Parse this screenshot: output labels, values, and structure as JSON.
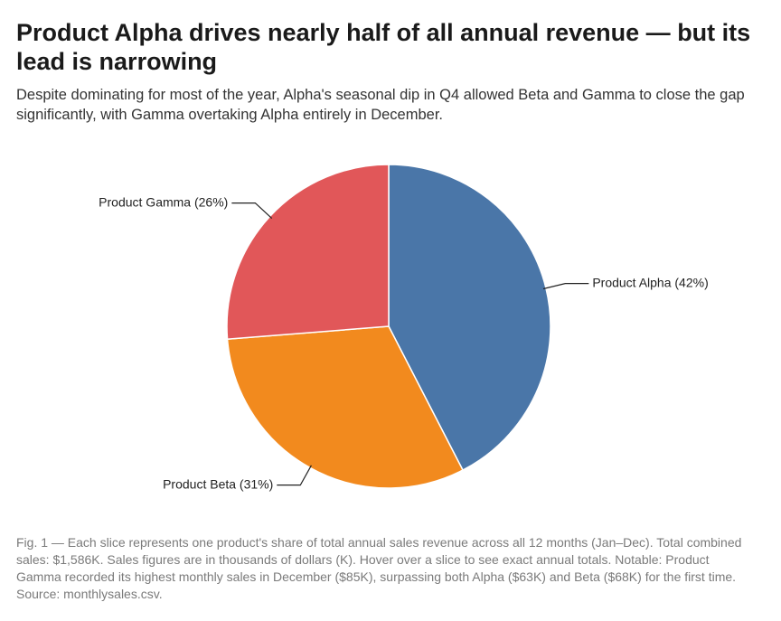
{
  "header": {
    "title": "Product Alpha drives nearly half of all annual revenue — but its lead is narrowing",
    "subtitle": "Despite dominating for most of the year, Alpha's seasonal dip in Q4 allowed Beta and Gamma to close the gap significantly, with Gamma overtaking Alpha entirely in December."
  },
  "caption": "Fig. 1 — Each slice represents one product's share of total annual sales revenue across all 12 months (Jan–Dec). Total combined sales: $1,586K. Sales figures are in thousands of dollars (K). Hover over a slice to see exact annual totals. Notable: Product Gamma recorded its highest monthly sales in December ($85K), surpassing both Alpha ($63K) and Beta ($68K) for the first time. Source: monthlysales.csv.",
  "chart_data": {
    "type": "pie",
    "title": "",
    "start_angle": "12 o'clock",
    "direction": "clockwise",
    "slices": [
      {
        "label": "Product Alpha (42%)",
        "name": "Product Alpha",
        "percent": 42,
        "color": "#4a76a8"
      },
      {
        "label": "Product Beta (31%)",
        "name": "Product Beta",
        "percent": 31,
        "color": "#f28a1e"
      },
      {
        "label": "Product Gamma (26%)",
        "name": "Product Gamma",
        "percent": 26,
        "color": "#e15759"
      }
    ],
    "legend": "none"
  }
}
